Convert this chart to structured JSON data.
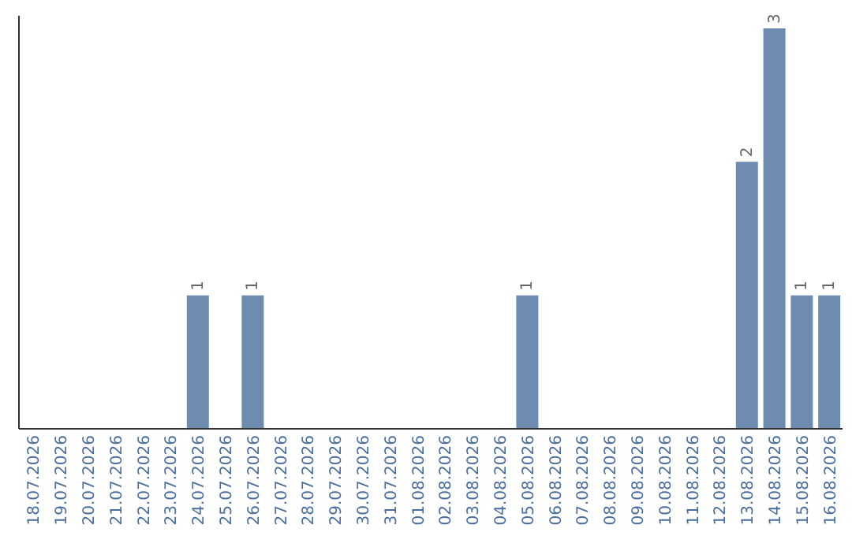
{
  "chart_data": {
    "type": "bar",
    "categories": [
      "18.07.2026",
      "19.07.2026",
      "20.07.2026",
      "21.07.2026",
      "22.07.2026",
      "23.07.2026",
      "24.07.2026",
      "25.07.2026",
      "26.07.2026",
      "27.07.2026",
      "28.07.2026",
      "29.07.2026",
      "30.07.2026",
      "31.07.2026",
      "01.08.2026",
      "02.08.2026",
      "03.08.2026",
      "04.08.2026",
      "05.08.2026",
      "06.08.2026",
      "07.08.2026",
      "08.08.2026",
      "09.08.2026",
      "10.08.2026",
      "11.08.2026",
      "12.08.2026",
      "13.08.2026",
      "14.08.2026",
      "15.08.2026",
      "16.08.2026"
    ],
    "values": [
      0,
      0,
      0,
      0,
      0,
      0,
      1,
      0,
      1,
      0,
      0,
      0,
      0,
      0,
      0,
      0,
      0,
      0,
      1,
      0,
      0,
      0,
      0,
      0,
      0,
      0,
      2,
      3,
      1,
      1
    ],
    "value_labels": [
      null,
      null,
      null,
      null,
      null,
      null,
      "1",
      null,
      "1",
      null,
      null,
      null,
      null,
      null,
      null,
      null,
      null,
      null,
      "1",
      null,
      null,
      null,
      null,
      null,
      null,
      null,
      "2",
      "3",
      "1",
      "1"
    ],
    "color": "#6d8caf",
    "tick_labels": "x",
    "grid": false,
    "legend": false
  }
}
